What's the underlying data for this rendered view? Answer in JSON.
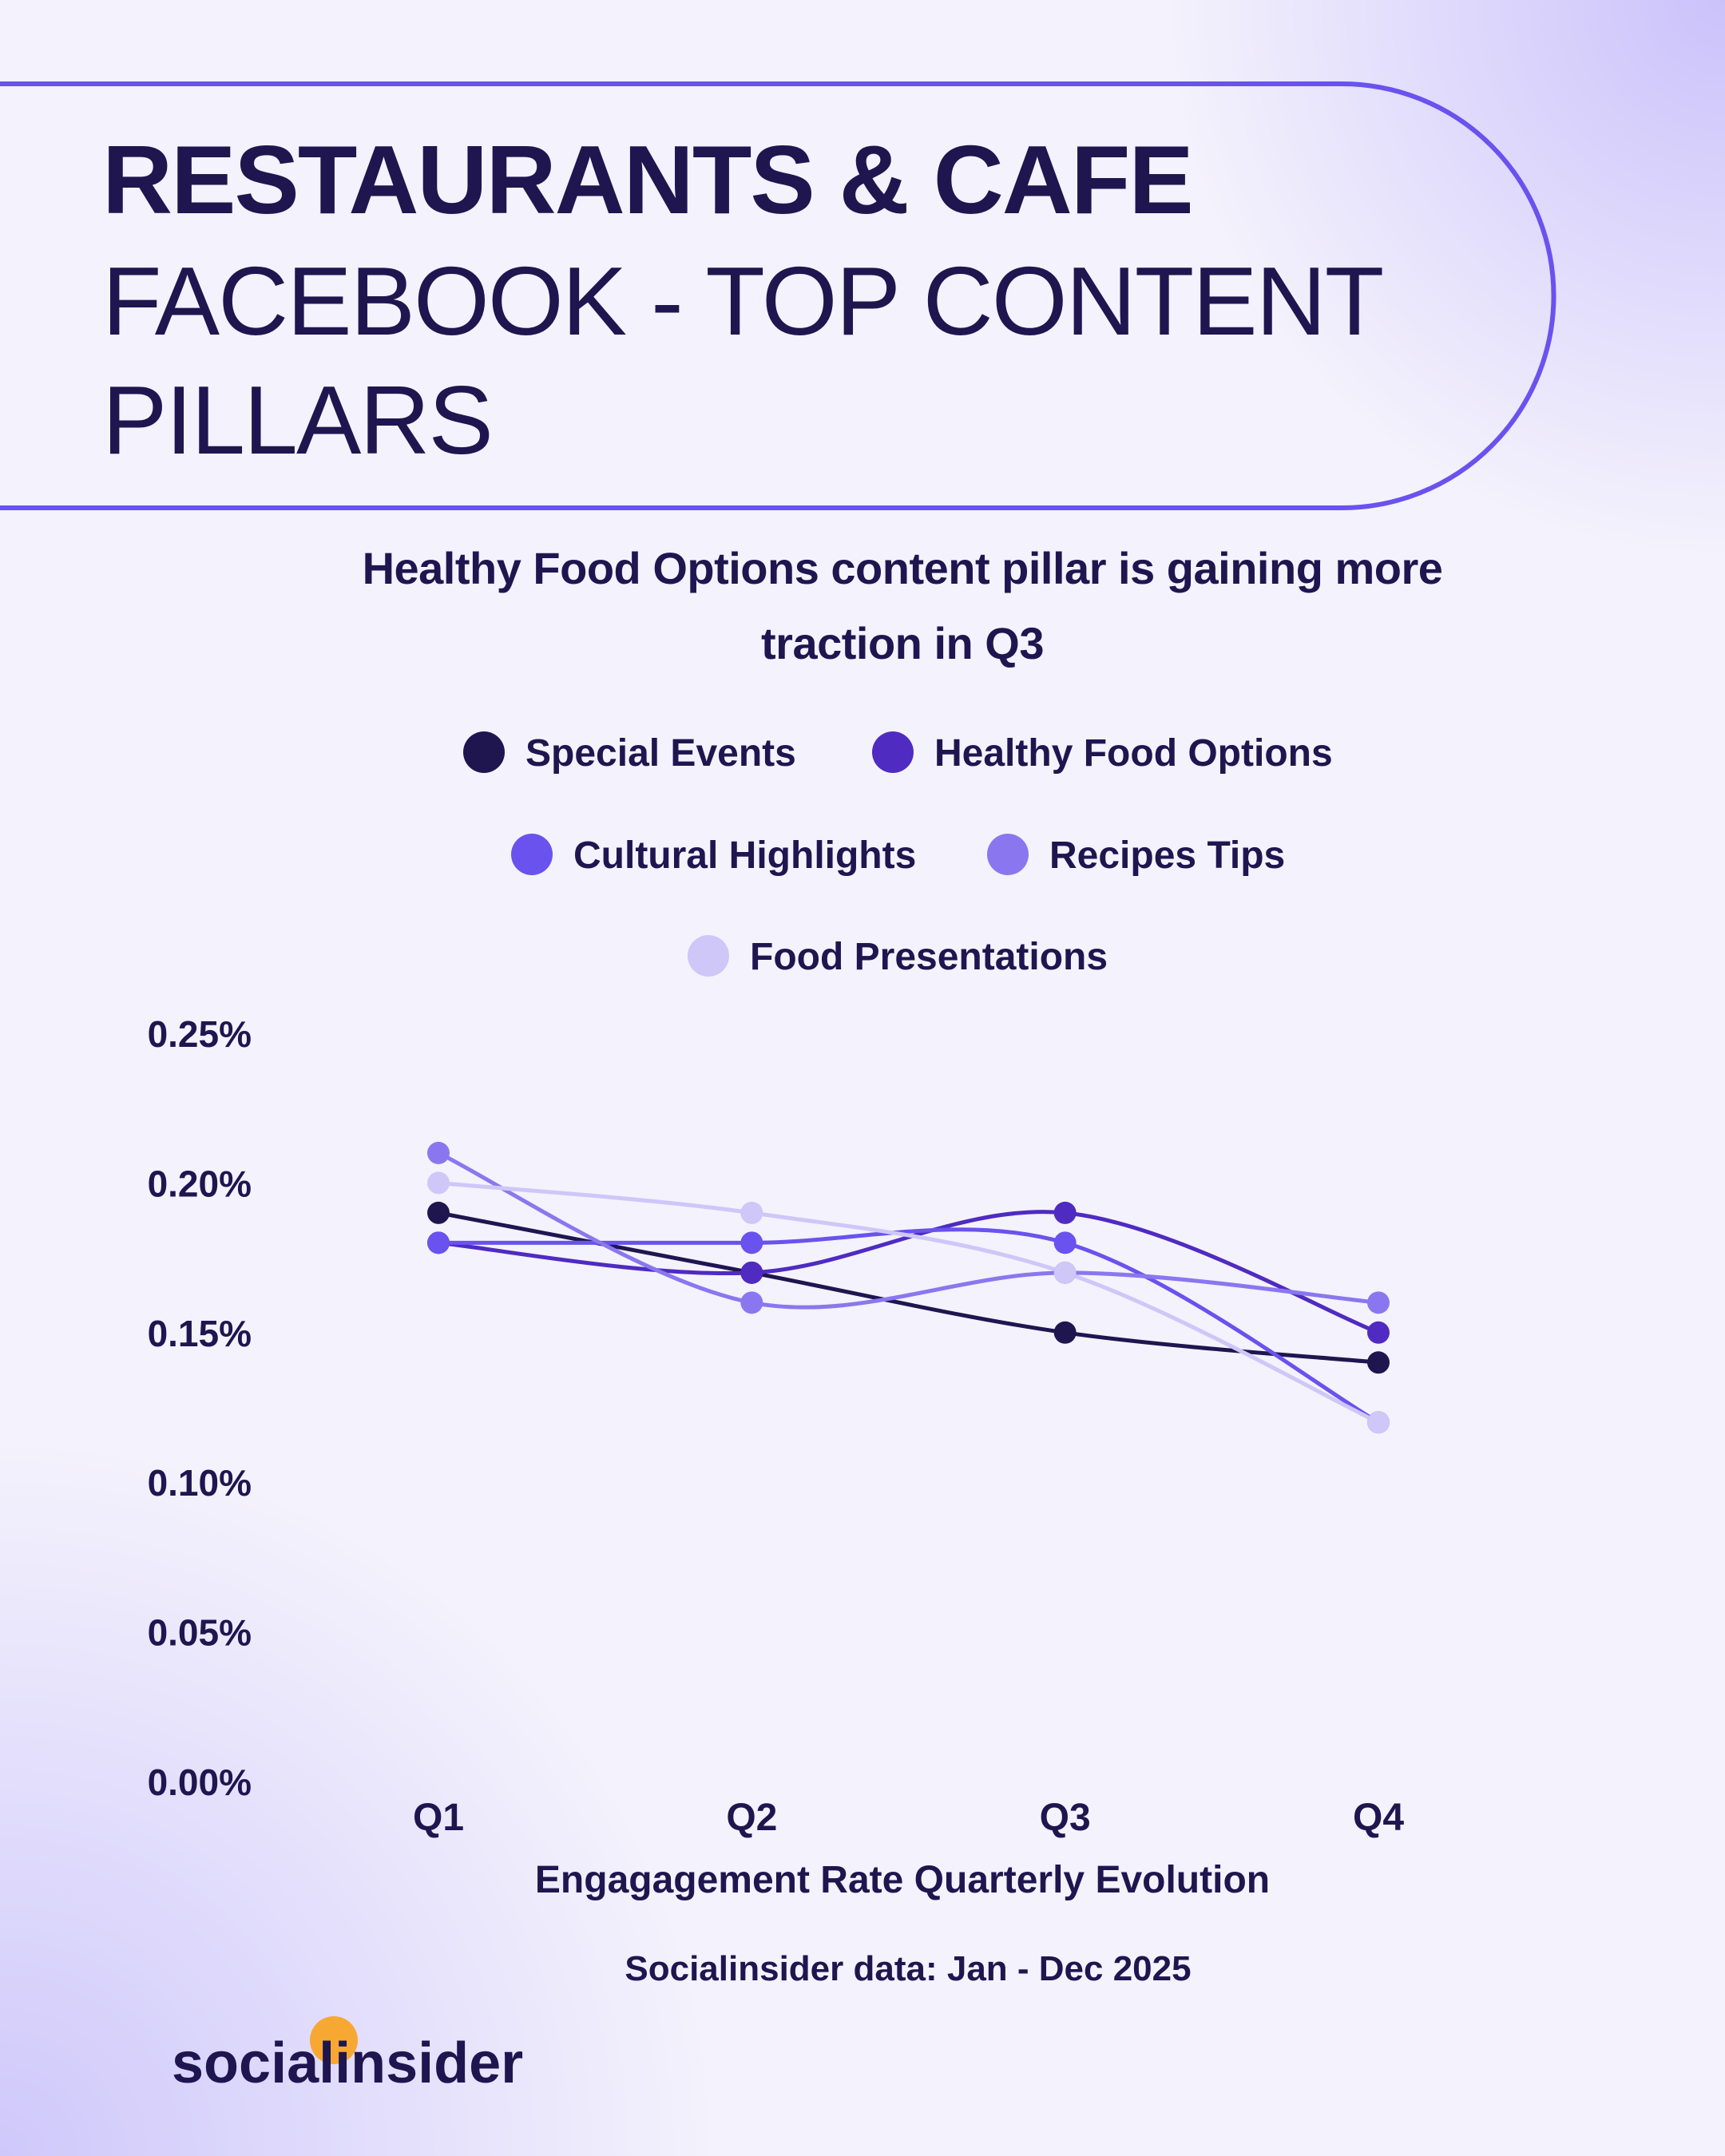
{
  "header": {
    "title": "RESTAURANTS & CAFE",
    "subtitle_lines": [
      "FACEBOOK - TOP CONTENT",
      "PILLARS"
    ]
  },
  "chart_data": {
    "type": "line",
    "title": "Healthy Food Options content pillar is gaining more traction in Q3",
    "categories": [
      "Q1",
      "Q2",
      "Q3",
      "Q4"
    ],
    "series": [
      {
        "name": "Special Events",
        "color": "#1f1650",
        "values": [
          0.19,
          0.17,
          0.15,
          0.14
        ]
      },
      {
        "name": "Healthy Food Options",
        "color": "#4f2bc2",
        "values": [
          0.18,
          0.17,
          0.19,
          0.15
        ]
      },
      {
        "name": "Cultural Highlights",
        "color": "#6a52ef",
        "values": [
          0.18,
          0.18,
          0.18,
          0.12
        ]
      },
      {
        "name": "Recipes Tips",
        "color": "#8a77f0",
        "values": [
          0.21,
          0.16,
          0.17,
          0.16
        ]
      },
      {
        "name": "Food Presentations",
        "color": "#cec7f8",
        "values": [
          0.2,
          0.19,
          0.17,
          0.12
        ]
      }
    ],
    "ylim": [
      0,
      0.25
    ],
    "yticks": [
      {
        "value": 0,
        "label": "0.00%"
      },
      {
        "value": 0.05,
        "label": "0.05%"
      },
      {
        "value": 0.1,
        "label": "0.10%"
      },
      {
        "value": 0.15,
        "label": "0.15%"
      },
      {
        "value": 0.2,
        "label": "0.20%"
      },
      {
        "value": 0.25,
        "label": "0.25%"
      }
    ],
    "xlabel": "Engagagement Rate Quarterly Evolution",
    "source": "Socialinsider data: Jan - Dec 2025"
  },
  "footer": {
    "logo": "socialinsider"
  }
}
